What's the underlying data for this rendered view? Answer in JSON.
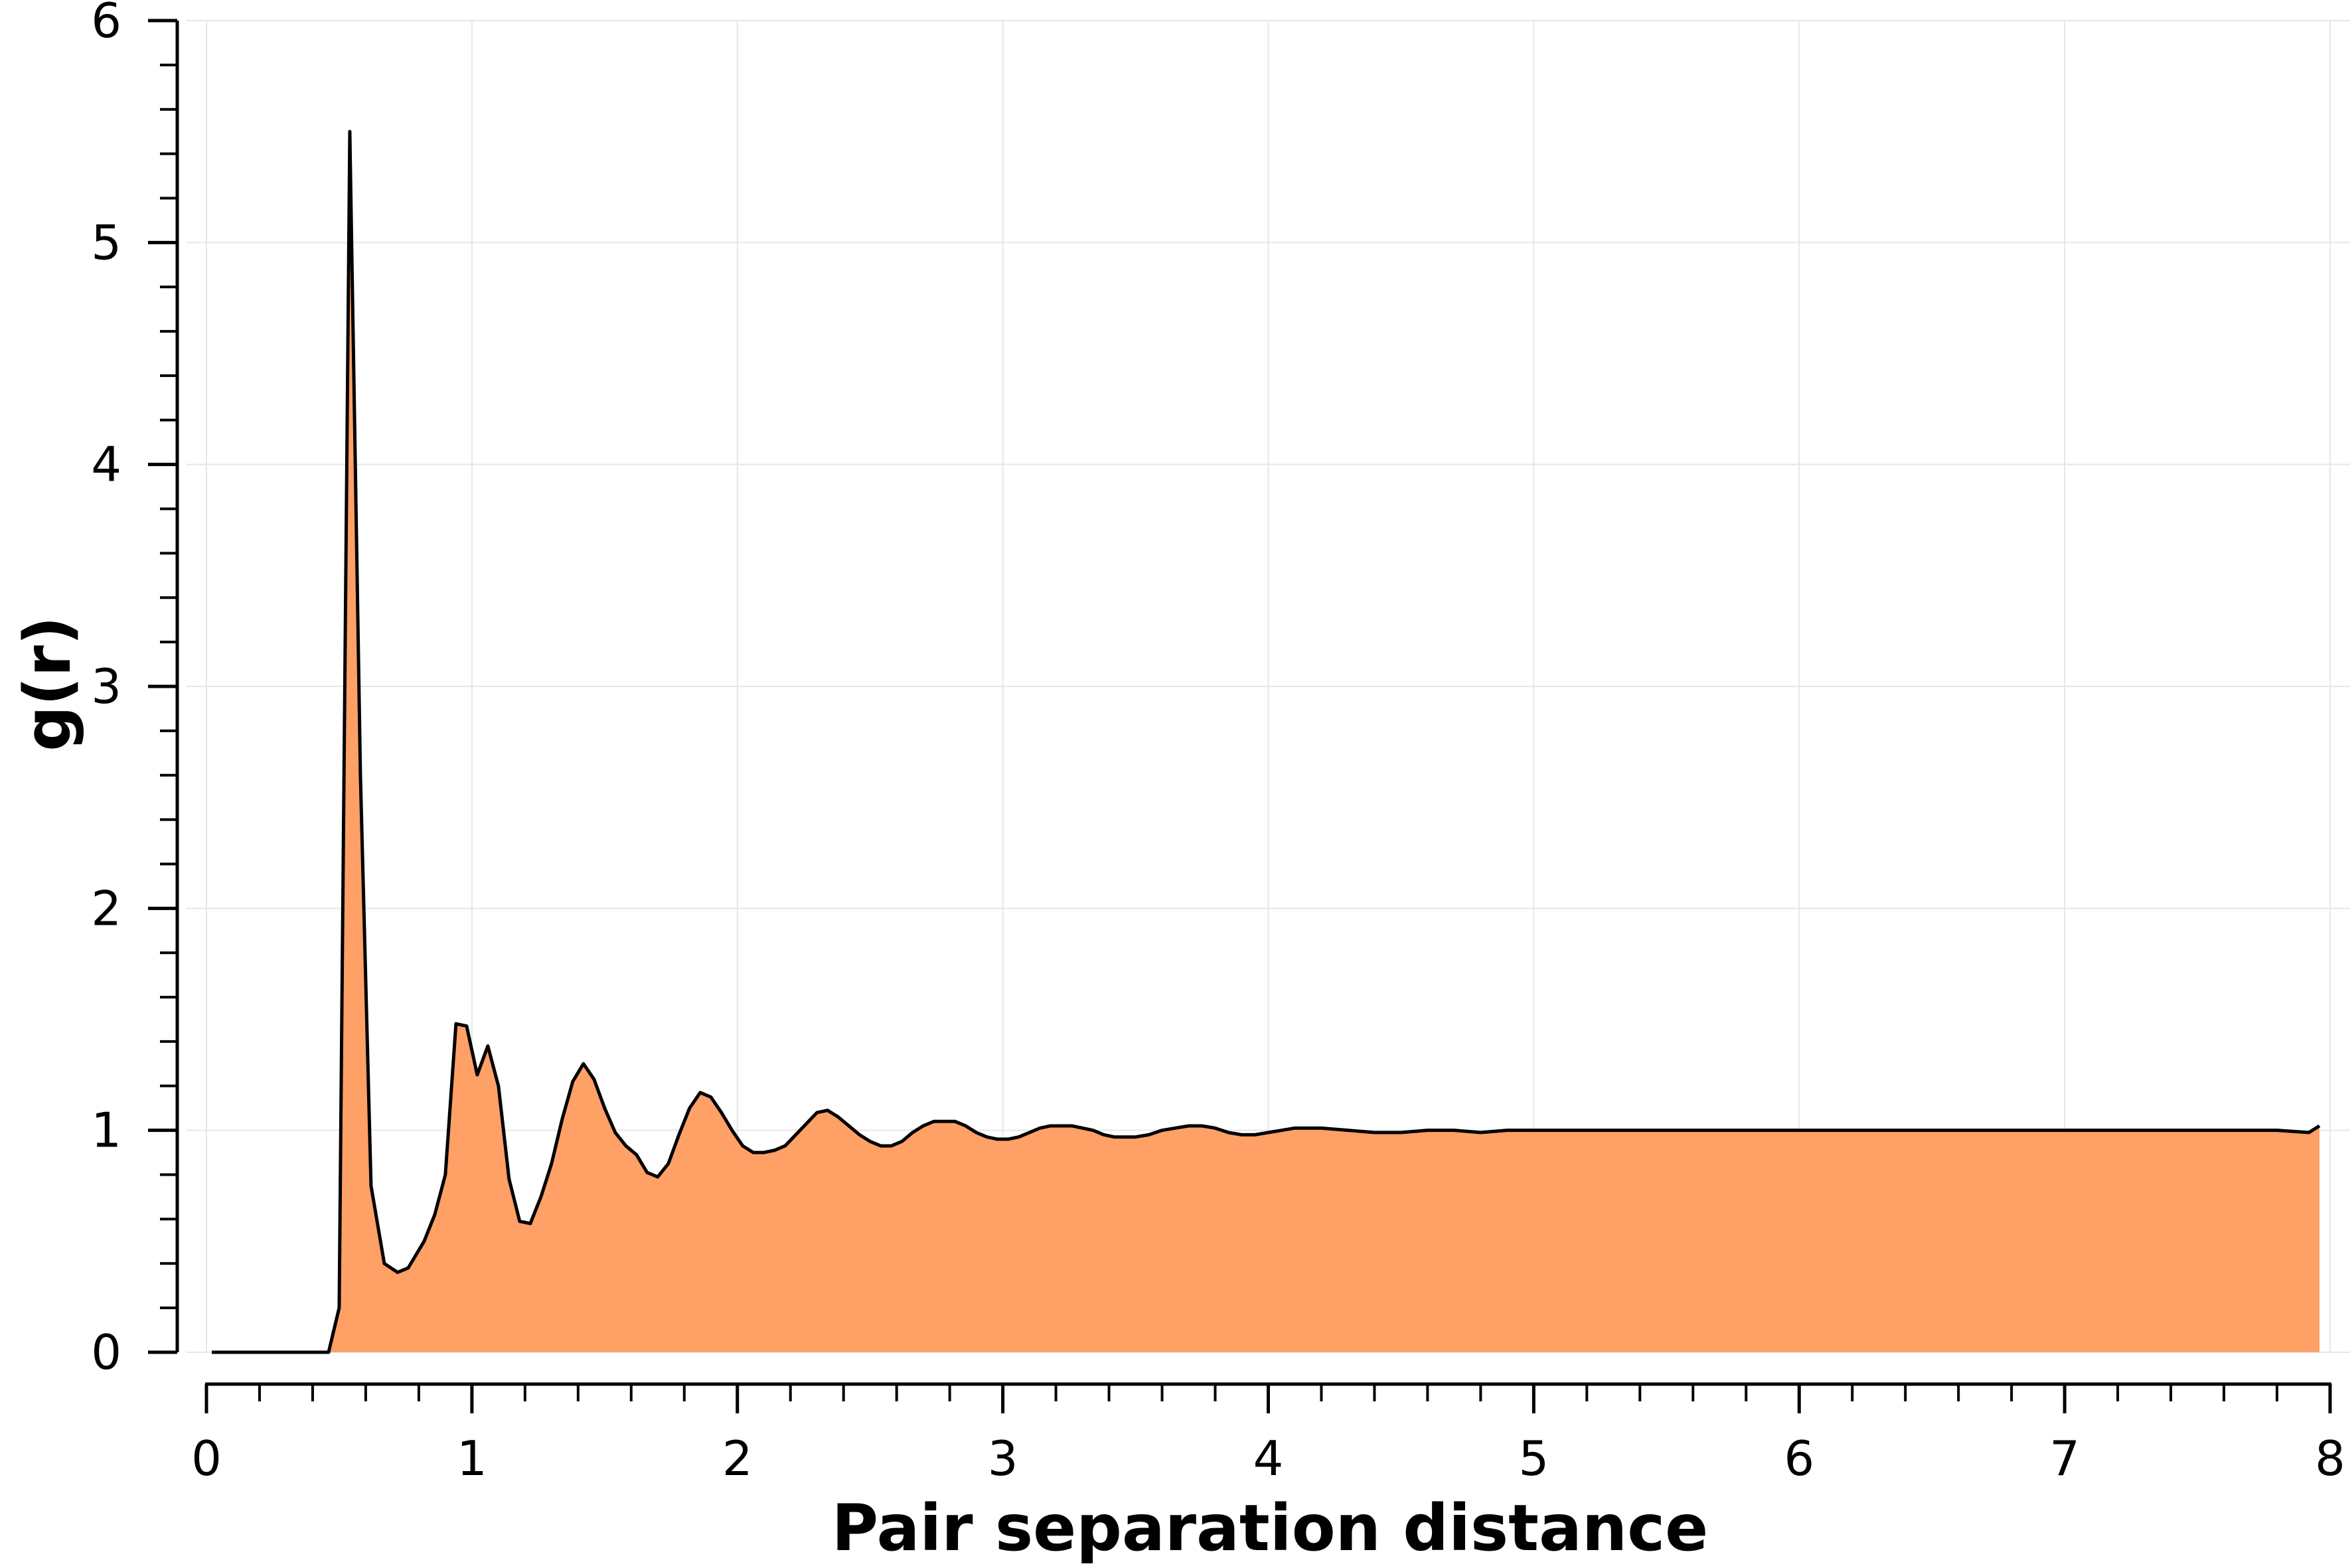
{
  "chart_data": {
    "type": "area",
    "title": "",
    "xlabel": "Pair separation distance",
    "ylabel": "g(r)",
    "xlim": [
      0,
      8
    ],
    "ylim": [
      0,
      6
    ],
    "x_ticks": [
      "0",
      "1",
      "2",
      "3",
      "4",
      "5",
      "6",
      "7",
      "8"
    ],
    "y_ticks": [
      "0",
      "1",
      "2",
      "3",
      "4",
      "5",
      "6"
    ],
    "x_tick_values": [
      0,
      1,
      2,
      3,
      4,
      5,
      6,
      7,
      8
    ],
    "y_tick_values": [
      0,
      1,
      2,
      3,
      4,
      5,
      6
    ],
    "grid": true,
    "legend": "none",
    "colors": {
      "fill": "#FFA066",
      "line": "#000000",
      "grid": "#e6e6e6"
    },
    "series": [
      {
        "x": [
          0.02,
          0.46,
          0.5,
          0.54,
          0.58,
          0.62,
          0.67,
          0.72,
          0.76,
          0.82,
          0.86,
          0.9,
          0.94,
          0.98,
          1.02,
          1.06,
          1.1,
          1.14,
          1.18,
          1.22,
          1.26,
          1.3,
          1.34,
          1.38,
          1.42,
          1.46,
          1.5,
          1.54,
          1.58,
          1.62,
          1.66,
          1.7,
          1.74,
          1.78,
          1.82,
          1.86,
          1.9,
          1.94,
          1.98,
          2.02,
          2.06,
          2.1,
          2.14,
          2.18,
          2.22,
          2.26,
          2.3,
          2.34,
          2.38,
          2.42,
          2.46,
          2.5,
          2.54,
          2.58,
          2.62,
          2.66,
          2.7,
          2.74,
          2.78,
          2.82,
          2.86,
          2.9,
          2.94,
          2.98,
          3.02,
          3.06,
          3.1,
          3.14,
          3.18,
          3.22,
          3.26,
          3.3,
          3.34,
          3.38,
          3.42,
          3.46,
          3.5,
          3.55,
          3.6,
          3.65,
          3.7,
          3.75,
          3.8,
          3.85,
          3.9,
          3.95,
          4.0,
          4.05,
          4.1,
          4.2,
          4.3,
          4.4,
          4.5,
          4.6,
          4.7,
          4.8,
          4.9,
          5.0,
          5.1,
          5.2,
          5.3,
          5.4,
          5.5,
          5.6,
          5.7,
          5.8,
          5.9,
          6.0,
          6.2,
          6.4,
          6.6,
          6.8,
          7.0,
          7.2,
          7.4,
          7.6,
          7.8,
          7.92,
          7.96
        ],
        "y": [
          0.0,
          0.0,
          0.2,
          5.5,
          2.6,
          0.75,
          0.4,
          0.36,
          0.38,
          0.5,
          0.62,
          0.8,
          1.48,
          1.47,
          1.25,
          1.38,
          1.2,
          0.78,
          0.59,
          0.58,
          0.7,
          0.85,
          1.05,
          1.22,
          1.3,
          1.23,
          1.1,
          0.99,
          0.93,
          0.89,
          0.81,
          0.79,
          0.85,
          0.98,
          1.1,
          1.17,
          1.15,
          1.08,
          1.0,
          0.93,
          0.9,
          0.9,
          0.91,
          0.93,
          0.98,
          1.03,
          1.08,
          1.09,
          1.06,
          1.02,
          0.98,
          0.95,
          0.93,
          0.93,
          0.95,
          0.99,
          1.02,
          1.04,
          1.04,
          1.04,
          1.02,
          0.99,
          0.97,
          0.96,
          0.96,
          0.97,
          0.99,
          1.01,
          1.02,
          1.02,
          1.02,
          1.01,
          1.0,
          0.98,
          0.97,
          0.97,
          0.97,
          0.98,
          1.0,
          1.01,
          1.02,
          1.02,
          1.01,
          0.99,
          0.98,
          0.98,
          0.99,
          1.0,
          1.01,
          1.01,
          1.0,
          0.99,
          0.99,
          1.0,
          1.0,
          0.99,
          1.0,
          1.0,
          1.0,
          1.0,
          1.0,
          1.0,
          1.0,
          1.0,
          1.0,
          1.0,
          1.0,
          1.0,
          1.0,
          1.0,
          1.0,
          1.0,
          1.0,
          1.0,
          1.0,
          1.0,
          1.0,
          0.99,
          1.02
        ]
      }
    ]
  }
}
